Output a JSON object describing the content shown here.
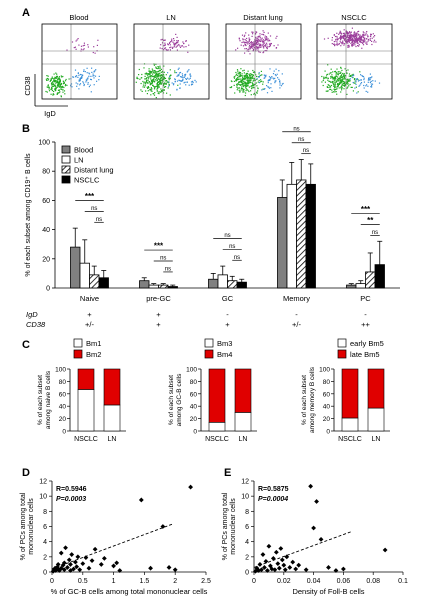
{
  "panel_letters": [
    "A",
    "B",
    "C",
    "D",
    "E"
  ],
  "panel_a": {
    "tissues": [
      "Blood",
      "LN",
      "Distant lung",
      "NSCLC"
    ],
    "ylabel": "CD38",
    "xlabel": "IgD"
  },
  "chart_data": [
    {
      "id": "B",
      "type": "bar",
      "ylabel": "% of each subset among CD19⁺ B cells",
      "ylim": [
        0,
        100
      ],
      "yticks": [
        0,
        20,
        40,
        60,
        80,
        100
      ],
      "categories": [
        "Naive",
        "pre-GC",
        "GC",
        "Memory",
        "PC"
      ],
      "legend_placement": "top-left",
      "series": [
        {
          "name": "Blood",
          "fill": "#808080",
          "values": [
            28,
            5,
            6,
            62,
            2
          ],
          "errors": [
            13,
            2,
            4,
            12,
            1
          ]
        },
        {
          "name": "LN",
          "fill": "#ffffff",
          "values": [
            17,
            2,
            9,
            71,
            3
          ],
          "errors": [
            16,
            1,
            6,
            15,
            2
          ]
        },
        {
          "name": "Distant lung",
          "fill": "hatch",
          "values": [
            9,
            2,
            5,
            74,
            11
          ],
          "errors": [
            6,
            1,
            3,
            14,
            13
          ]
        },
        {
          "name": "NSCLC",
          "fill": "#000000",
          "values": [
            7,
            1,
            4,
            71,
            16
          ],
          "errors": [
            5,
            1,
            2,
            14,
            16
          ]
        }
      ],
      "significance": [
        {
          "category": "Naive",
          "marks": [
            "***",
            "ns",
            "ns"
          ]
        },
        {
          "category": "pre-GC",
          "marks": [
            "***",
            "ns",
            "ns"
          ]
        },
        {
          "category": "GC",
          "marks": [
            "ns",
            "ns",
            "ns"
          ]
        },
        {
          "category": "Memory",
          "marks": [
            "ns",
            "ns",
            "ns"
          ]
        },
        {
          "category": "PC",
          "marks": [
            "***",
            "**",
            "ns"
          ]
        }
      ],
      "phenotype_rows": [
        {
          "label": "IgD",
          "values": [
            "+",
            "+",
            "-",
            "-",
            "-"
          ]
        },
        {
          "label": "CD38",
          "values": [
            "+/-",
            "+",
            "+",
            "+/-",
            "++"
          ]
        }
      ]
    },
    {
      "id": "C1",
      "type": "bar",
      "stacked": true,
      "ylabel_lines": [
        "% of each subset",
        "among naive B cells"
      ],
      "ylim": [
        0,
        100
      ],
      "yticks": [
        0,
        20,
        40,
        60,
        80,
        100
      ],
      "categories": [
        "NSCLC",
        "LN"
      ],
      "series": [
        {
          "name": "Bm1",
          "color": "#ffffff",
          "values": [
            67,
            42
          ]
        },
        {
          "name": "Bm2",
          "color": "#e00000",
          "values": [
            33,
            58
          ]
        }
      ]
    },
    {
      "id": "C2",
      "type": "bar",
      "stacked": true,
      "ylabel_lines": [
        "% of each subset",
        "among GC-B cells"
      ],
      "ylim": [
        0,
        100
      ],
      "yticks": [
        0,
        20,
        40,
        60,
        80,
        100
      ],
      "categories": [
        "NSCLC",
        "LN"
      ],
      "series": [
        {
          "name": "Bm3",
          "color": "#ffffff",
          "values": [
            14,
            30
          ]
        },
        {
          "name": "Bm4",
          "color": "#e00000",
          "values": [
            86,
            70
          ]
        }
      ]
    },
    {
      "id": "C3",
      "type": "bar",
      "stacked": true,
      "ylabel_lines": [
        "% of each subset",
        "among memory B cells"
      ],
      "ylim": [
        0,
        100
      ],
      "yticks": [
        0,
        20,
        40,
        60,
        80,
        100
      ],
      "categories": [
        "NSCLC",
        "LN"
      ],
      "series": [
        {
          "name": "early Bm5",
          "color": "#ffffff",
          "values": [
            21,
            37
          ]
        },
        {
          "name": "late Bm5",
          "color": "#e00000",
          "values": [
            79,
            63
          ]
        }
      ]
    },
    {
      "id": "D",
      "type": "scatter",
      "xlabel": "% of GC-B cells among total mononuclear cells",
      "ylabel_lines": [
        "% of PCs among total",
        "mononuclear cells"
      ],
      "xlim": [
        0,
        2.5
      ],
      "ylim": [
        0,
        12
      ],
      "xticks": [
        0,
        0.5,
        1,
        1.5,
        2,
        2.5
      ],
      "xtick_labels": [
        "0",
        "0.5",
        "1",
        "1.5",
        "2",
        "2.5"
      ],
      "yticks": [
        0,
        2,
        4,
        6,
        8,
        10,
        12
      ],
      "stats": [
        "R=0.5946",
        "P=0.0003"
      ],
      "trend": [
        [
          0,
          0.4
        ],
        [
          1.95,
          6.3
        ]
      ],
      "points": [
        [
          0.02,
          0.1
        ],
        [
          0.04,
          0.3
        ],
        [
          0.05,
          0.5
        ],
        [
          0.06,
          0.2
        ],
        [
          0.08,
          0.6
        ],
        [
          0.1,
          0.4
        ],
        [
          0.1,
          1.0
        ],
        [
          0.12,
          0.2
        ],
        [
          0.15,
          2.5
        ],
        [
          0.15,
          0.5
        ],
        [
          0.18,
          0.9
        ],
        [
          0.2,
          0.3
        ],
        [
          0.2,
          1.2
        ],
        [
          0.22,
          3.2
        ],
        [
          0.25,
          0.6
        ],
        [
          0.28,
          1.6
        ],
        [
          0.3,
          0.2
        ],
        [
          0.3,
          1.0
        ],
        [
          0.32,
          2.3
        ],
        [
          0.35,
          0.4
        ],
        [
          0.38,
          1.3
        ],
        [
          0.4,
          0.7
        ],
        [
          0.42,
          2.0
        ],
        [
          0.45,
          0.3
        ],
        [
          0.5,
          1.1
        ],
        [
          0.55,
          1.9
        ],
        [
          0.6,
          0.5
        ],
        [
          0.65,
          1.5
        ],
        [
          0.7,
          3.0
        ],
        [
          0.8,
          1.0
        ],
        [
          0.85,
          1.8
        ],
        [
          1.0,
          0.8
        ],
        [
          1.05,
          1.2
        ],
        [
          1.1,
          0.2
        ],
        [
          1.45,
          9.5
        ],
        [
          1.6,
          0.5
        ],
        [
          1.8,
          6.0
        ],
        [
          1.9,
          0.6
        ],
        [
          2.0,
          0.3
        ],
        [
          2.25,
          11.2
        ]
      ]
    },
    {
      "id": "E",
      "type": "scatter",
      "xlabel": "Density of Foll-B cells",
      "ylabel_lines": [
        "% of PCs among total",
        "mononuclear cells"
      ],
      "xlim": [
        0,
        0.1
      ],
      "ylim": [
        0,
        12
      ],
      "xticks": [
        0,
        0.02,
        0.04,
        0.06,
        0.08,
        0.1
      ],
      "xtick_labels": [
        "0",
        "0.02",
        "0.04",
        "0.06",
        "0.08",
        "0.1"
      ],
      "yticks": [
        0,
        2,
        4,
        6,
        8,
        10,
        12
      ],
      "stats": [
        "R=0.5875",
        "P=0.0004"
      ],
      "trend": [
        [
          0,
          0.6
        ],
        [
          0.065,
          5.3
        ]
      ],
      "points": [
        [
          0.001,
          0.1
        ],
        [
          0.002,
          0.5
        ],
        [
          0.003,
          0.2
        ],
        [
          0.004,
          1.0
        ],
        [
          0.005,
          0.3
        ],
        [
          0.006,
          2.3
        ],
        [
          0.007,
          0.6
        ],
        [
          0.008,
          1.4
        ],
        [
          0.009,
          0.2
        ],
        [
          0.01,
          3.4
        ],
        [
          0.011,
          0.8
        ],
        [
          0.012,
          0.4
        ],
        [
          0.013,
          1.8
        ],
        [
          0.014,
          0.3
        ],
        [
          0.015,
          2.6
        ],
        [
          0.016,
          1.1
        ],
        [
          0.017,
          0.5
        ],
        [
          0.018,
          3.1
        ],
        [
          0.019,
          1.6
        ],
        [
          0.02,
          0.9
        ],
        [
          0.021,
          0.3
        ],
        [
          0.022,
          2.0
        ],
        [
          0.024,
          0.6
        ],
        [
          0.026,
          1.3
        ],
        [
          0.028,
          0.4
        ],
        [
          0.03,
          0.9
        ],
        [
          0.035,
          0.3
        ],
        [
          0.038,
          11.3
        ],
        [
          0.04,
          5.8
        ],
        [
          0.042,
          9.3
        ],
        [
          0.045,
          4.3
        ],
        [
          0.05,
          0.6
        ],
        [
          0.055,
          0.2
        ],
        [
          0.06,
          0.4
        ],
        [
          0.088,
          2.9
        ]
      ]
    }
  ]
}
